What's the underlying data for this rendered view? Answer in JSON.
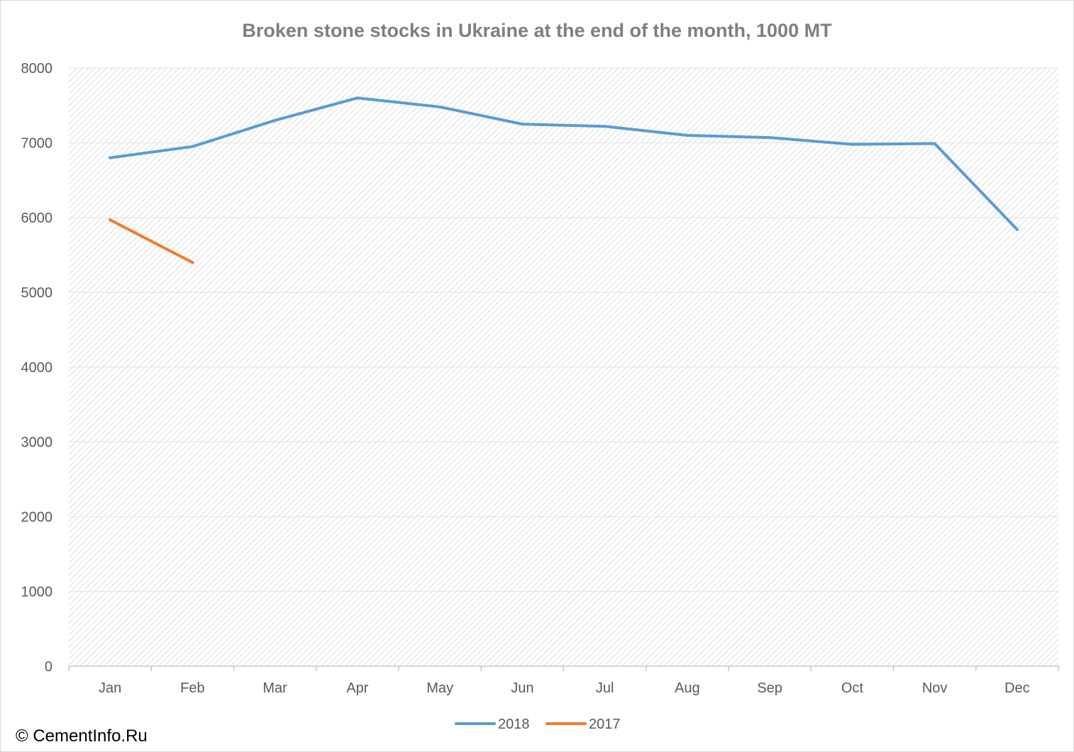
{
  "chart_data": {
    "type": "line",
    "title": "Broken stone stocks in Ukraine at the end of the month, 1000 MT",
    "categories": [
      "Jan",
      "Feb",
      "Mar",
      "Apr",
      "May",
      "Jun",
      "Jul",
      "Aug",
      "Sep",
      "Oct",
      "Nov",
      "Dec"
    ],
    "series": [
      {
        "name": "2018",
        "color": "#5b9bd5",
        "values": [
          6800,
          6950,
          7300,
          7600,
          7480,
          7250,
          7220,
          7100,
          7070,
          6980,
          6990,
          5840
        ]
      },
      {
        "name": "2017",
        "color": "#ed7d31",
        "values": [
          5970,
          5400,
          null,
          null,
          null,
          null,
          null,
          null,
          null,
          null,
          null,
          null
        ]
      }
    ],
    "ylim": [
      0,
      8000
    ],
    "yticks": [
      0,
      1000,
      2000,
      3000,
      4000,
      5000,
      6000,
      7000,
      8000
    ],
    "grid": true,
    "legend_position": "bottom"
  },
  "credit": "© CementInfo.Ru"
}
